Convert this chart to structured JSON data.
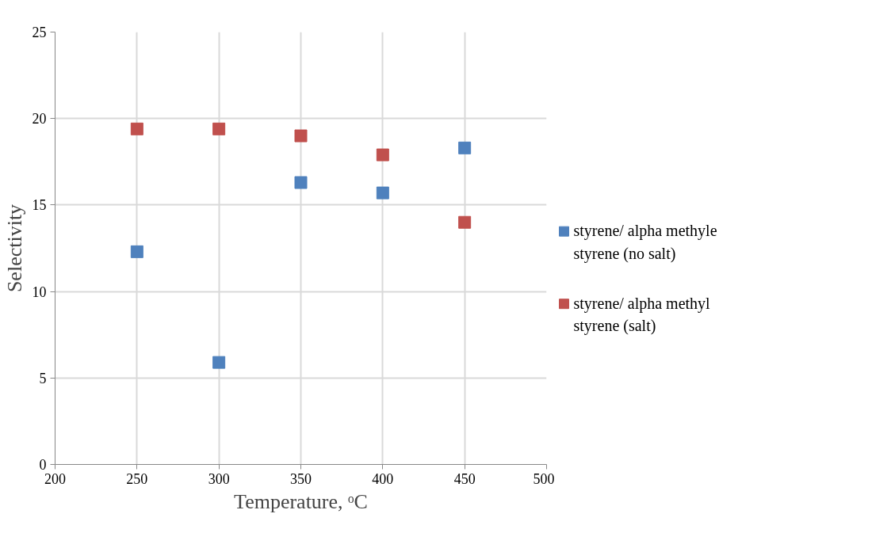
{
  "chart_data": {
    "type": "scatter",
    "xlabel": "Temperature, ᵒC",
    "ylabel": "Selectivity",
    "x": [
      250,
      300,
      350,
      400,
      450
    ],
    "series": [
      {
        "name": "styrene/ alpha methyle styrene (no salt)",
        "color": "#4f81bd",
        "values": [
          12.3,
          5.9,
          16.3,
          15.7,
          18.3
        ]
      },
      {
        "name": "styrene/ alpha methyl styrene (salt)",
        "color": "#c0504d",
        "values": [
          19.4,
          19.4,
          19.0,
          17.9,
          14.0
        ]
      }
    ],
    "xlim": [
      200,
      500
    ],
    "xticks": [
      200,
      250,
      300,
      350,
      400,
      450,
      500
    ],
    "ylim": [
      0,
      25
    ],
    "yticks": [
      0,
      5,
      10,
      15,
      20,
      25
    ],
    "grid": true,
    "legend": "right",
    "marker": "square"
  }
}
